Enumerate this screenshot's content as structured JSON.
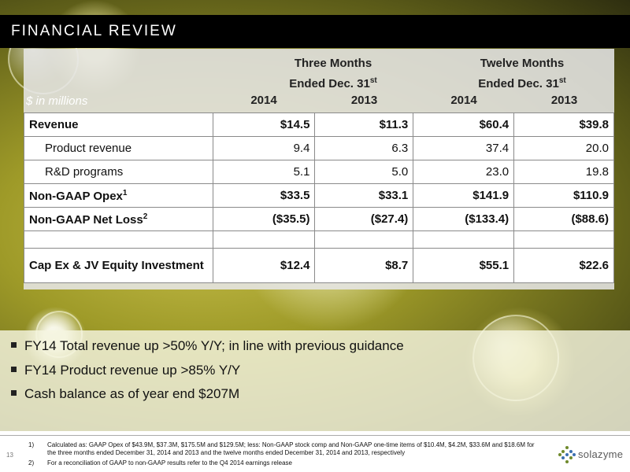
{
  "header": {
    "title": "FINANCIAL REVIEW"
  },
  "table": {
    "units_label": "$ in millions",
    "groups": [
      {
        "line1": "Three Months",
        "line2": "Ended Dec. 31",
        "sup": "st"
      },
      {
        "line1": "Twelve Months",
        "line2": "Ended Dec. 31",
        "sup": "st"
      }
    ],
    "years": [
      "2014",
      "2013",
      "2014",
      "2013"
    ],
    "rows": [
      {
        "label": "Revenue",
        "sup": "",
        "values": [
          "$14.5",
          "$11.3",
          "$60.4",
          "$39.8"
        ]
      },
      {
        "label": "Product revenue",
        "sup": "",
        "values": [
          "9.4",
          "6.3",
          "37.4",
          "20.0"
        ]
      },
      {
        "label": "R&D programs",
        "sup": "",
        "values": [
          "5.1",
          "5.0",
          "23.0",
          "19.8"
        ]
      },
      {
        "label": "Non-GAAP Opex",
        "sup": "1",
        "values": [
          "$33.5",
          "$33.1",
          "$141.9",
          "$110.9"
        ]
      },
      {
        "label": "Non-GAAP Net Loss",
        "sup": "2",
        "values": [
          "($35.5)",
          "($27.4)",
          "($133.4)",
          "($88.6)"
        ]
      },
      {
        "label": "",
        "sup": "",
        "values": [
          "",
          "",
          "",
          ""
        ]
      },
      {
        "label": "Cap Ex & JV Equity Investment",
        "sup": "",
        "values": [
          "$12.4",
          "$8.7",
          "$55.1",
          "$22.6"
        ]
      }
    ]
  },
  "bullets": [
    "FY14 Total revenue up >50% Y/Y; in line with previous guidance",
    "FY14 Product revenue up >85% Y/Y",
    "Cash balance as of year end $207M"
  ],
  "footnotes": [
    {
      "num": "1)",
      "text": "Calculated as: GAAP Opex of $43.9M, $37.3M, $175.5M and $129.5M; less: Non-GAAP stock comp and Non-GAAP one-time items of $10.4M, $4.2M, $33.6M and $18.6M for the three months ended December 31, 2014 and 2013 and the twelve months ended December 31, 2014 and 2013, respectively"
    },
    {
      "num": "2)",
      "text": "For a reconciliation of GAAP to non-GAAP results refer to the Q4 2014 earnings release"
    }
  ],
  "page_number": "13",
  "logo": {
    "text": "solazyme",
    "icon": "diamond-dots-logo-icon",
    "color": "#5a6e2a"
  }
}
